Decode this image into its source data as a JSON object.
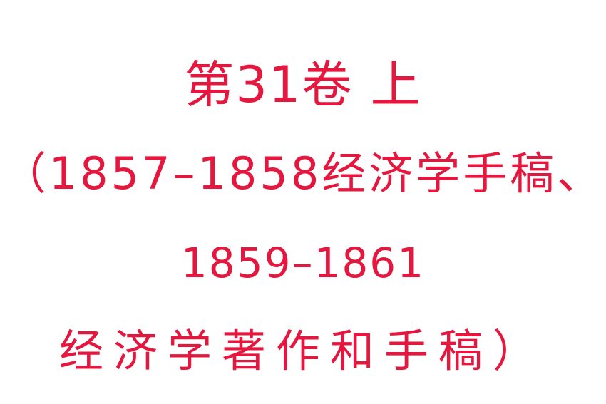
{
  "document": {
    "title": "第31卷 上",
    "subtitle_lines": [
      "（1857–1858经济学手稿、",
      "1859–1861",
      "经济学著作和手稿）"
    ],
    "text_color": "#e5173f",
    "background_color": "#ffffff"
  }
}
